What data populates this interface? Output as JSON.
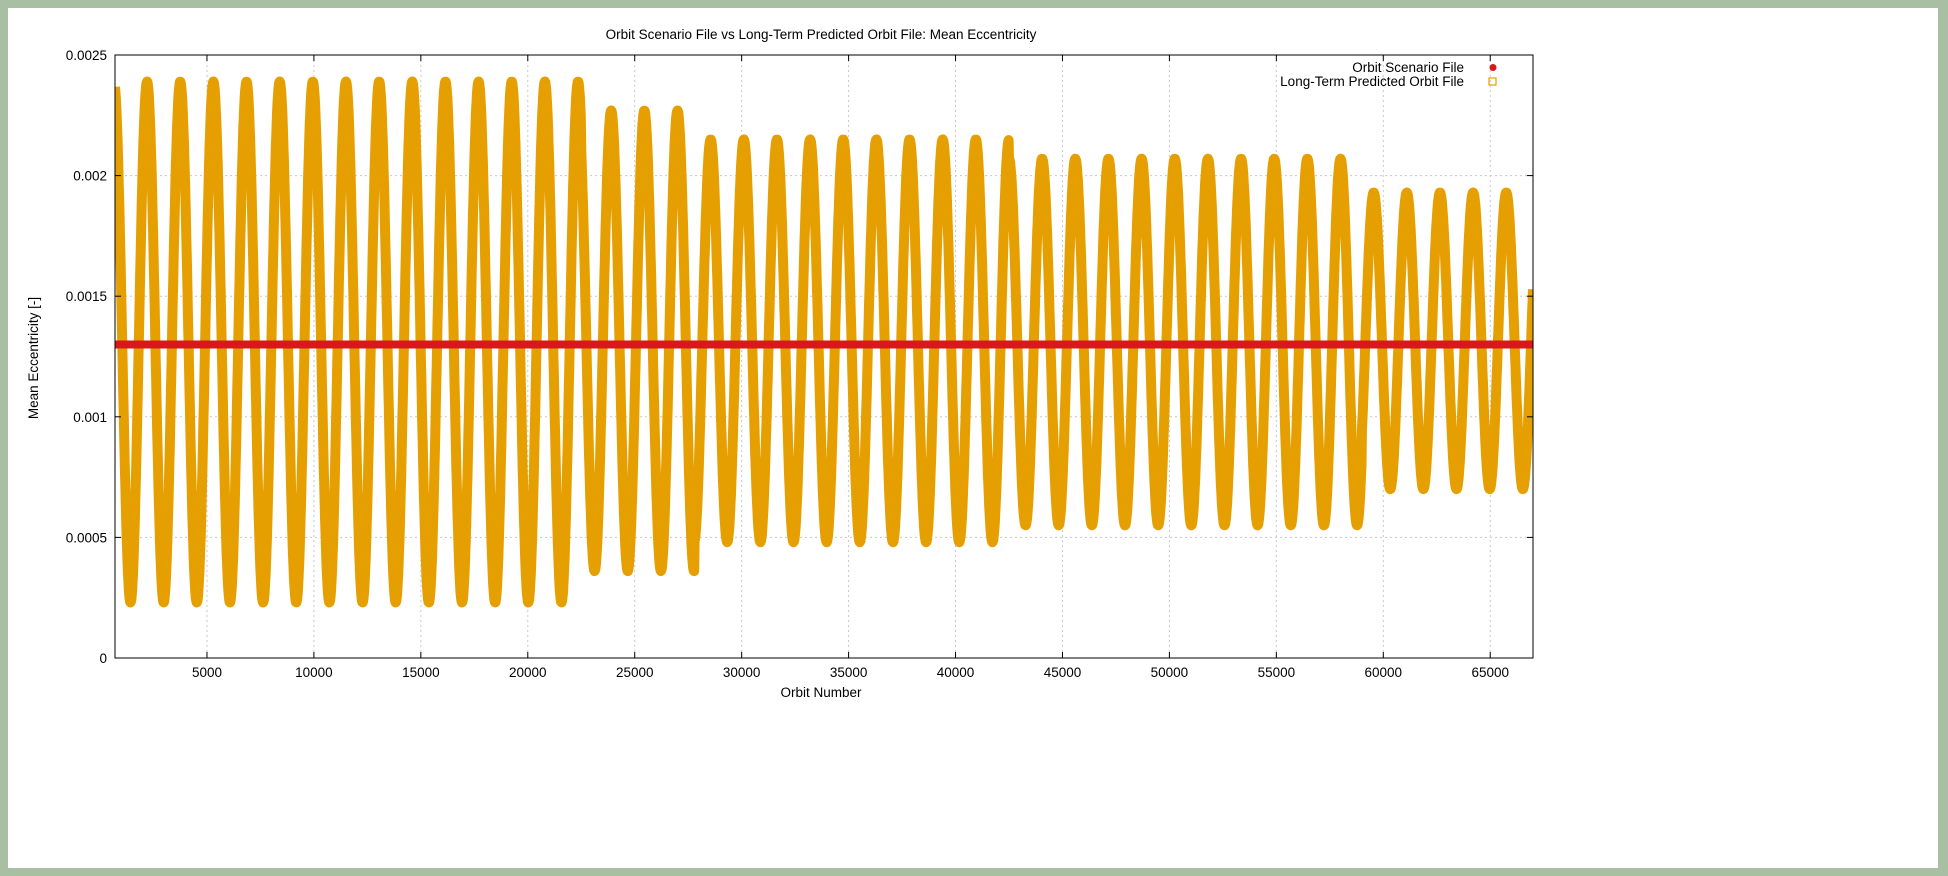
{
  "chart_data": {
    "type": "scatter",
    "title": "Orbit Scenario File vs Long-Term Predicted Orbit File: Mean Eccentricity",
    "xlabel": "Orbit Number",
    "ylabel": "Mean Eccentricity [-]",
    "xlim": [
      700,
      67000
    ],
    "ylim": [
      0,
      0.0025
    ],
    "x_ticks": [
      "5000",
      "10000",
      "15000",
      "20000",
      "25000",
      "30000",
      "35000",
      "40000",
      "45000",
      "50000",
      "55000",
      "60000",
      "65000"
    ],
    "y_ticks": [
      "0",
      "0.0005",
      "0.001",
      "0.0015",
      "0.002",
      "0.0025"
    ],
    "grid": true,
    "legend_position": "top-right",
    "series": [
      {
        "name": "Orbit Scenario File",
        "color": "#d7191c",
        "marker": "filled-circle",
        "x_range": [
          700,
          67000
        ],
        "constant_value": 0.0013
      },
      {
        "name": "Long-Term Predicted Orbit File",
        "color": "#e69f00",
        "marker": "open-square",
        "oscillation_period_orbits": 1550,
        "segments": [
          {
            "x_range": [
              700,
              22500
            ],
            "max": 0.00239,
            "min": 0.00023
          },
          {
            "x_range": [
              22500,
              27800
            ],
            "max": 0.00227,
            "min": 0.00036
          },
          {
            "x_range": [
              27800,
              42500
            ],
            "max": 0.00215,
            "min": 0.00048
          },
          {
            "x_range": [
              42500,
              59000
            ],
            "max": 0.00207,
            "min": 0.00055
          },
          {
            "x_range": [
              59000,
              67000
            ],
            "max": 0.00193,
            "min": 0.0007
          }
        ]
      }
    ]
  }
}
